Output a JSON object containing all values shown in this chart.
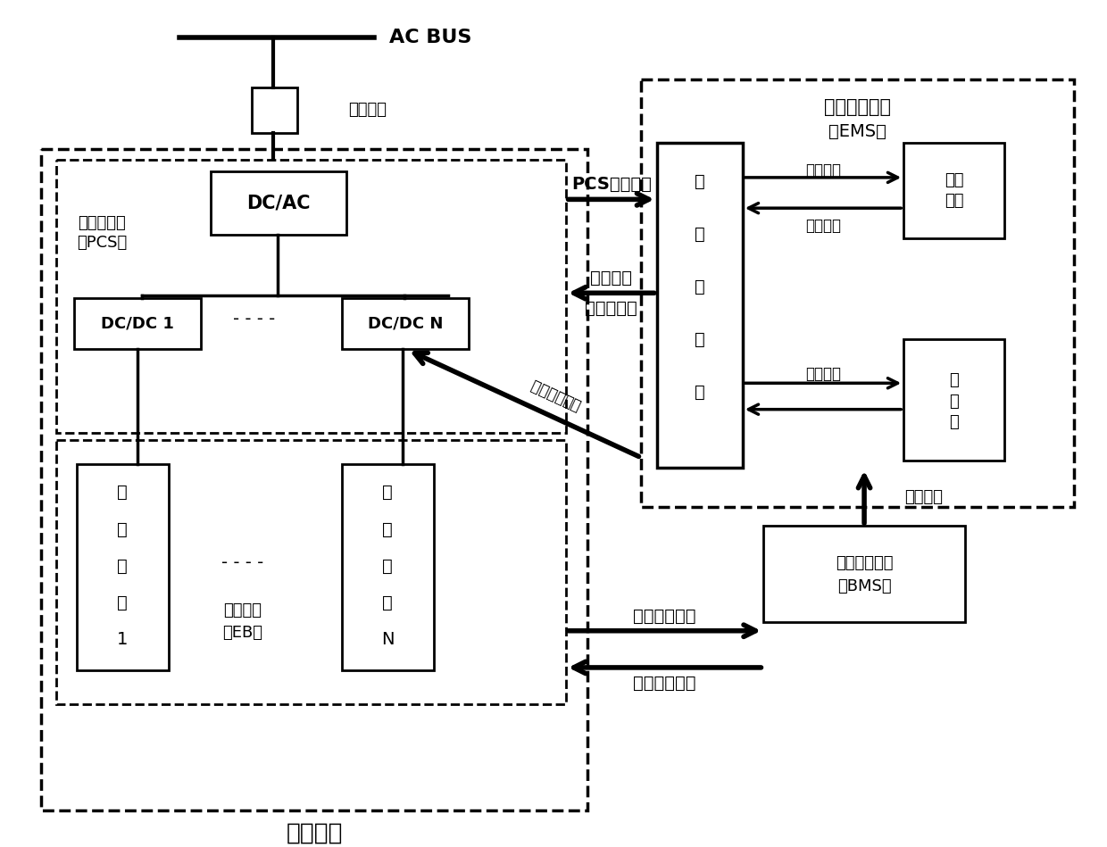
{
  "bg": "#ffffff",
  "ac_bus": "AC BUS",
  "switch_label": "支路开关",
  "dcac": "DC/AC",
  "pcs_sub1": "储能变流器",
  "pcs_sub2": "（PCS）",
  "dcdc1": "DC/DC 1",
  "dcdcn": "DC/DC N",
  "bat1_lines": [
    "储",
    "能",
    "电",
    "池",
    "1"
  ],
  "batN_lines": [
    "储",
    "能",
    "电",
    "池",
    "N"
  ],
  "eb1": "储能电池",
  "eb2": "（EB）",
  "unit_label": "储能单元",
  "ems_title1": "储能监控系统",
  "ems_title2": "（EMS）",
  "comm_lines": [
    "通",
    "信",
    "管",
    "理",
    "机"
  ],
  "monitor1": "监控",
  "monitor2": "界面",
  "db1": "数",
  "db2": "据",
  "db3": "库",
  "bms1": "电池管理系统",
  "bms2": "（BMS）",
  "pcs_data": "PCS运行数据",
  "work_mode": "工作模式",
  "charge_strategy": "充放电策略",
  "realtime": "实时数据",
  "ctrl_cmd": "控制指令",
  "run_data_ems": "运行数据",
  "bat_info": "电池信息",
  "bat_run": "电池运行数据",
  "prot_bottom": "保护控制命令",
  "prot_diag": "保护控制命令"
}
